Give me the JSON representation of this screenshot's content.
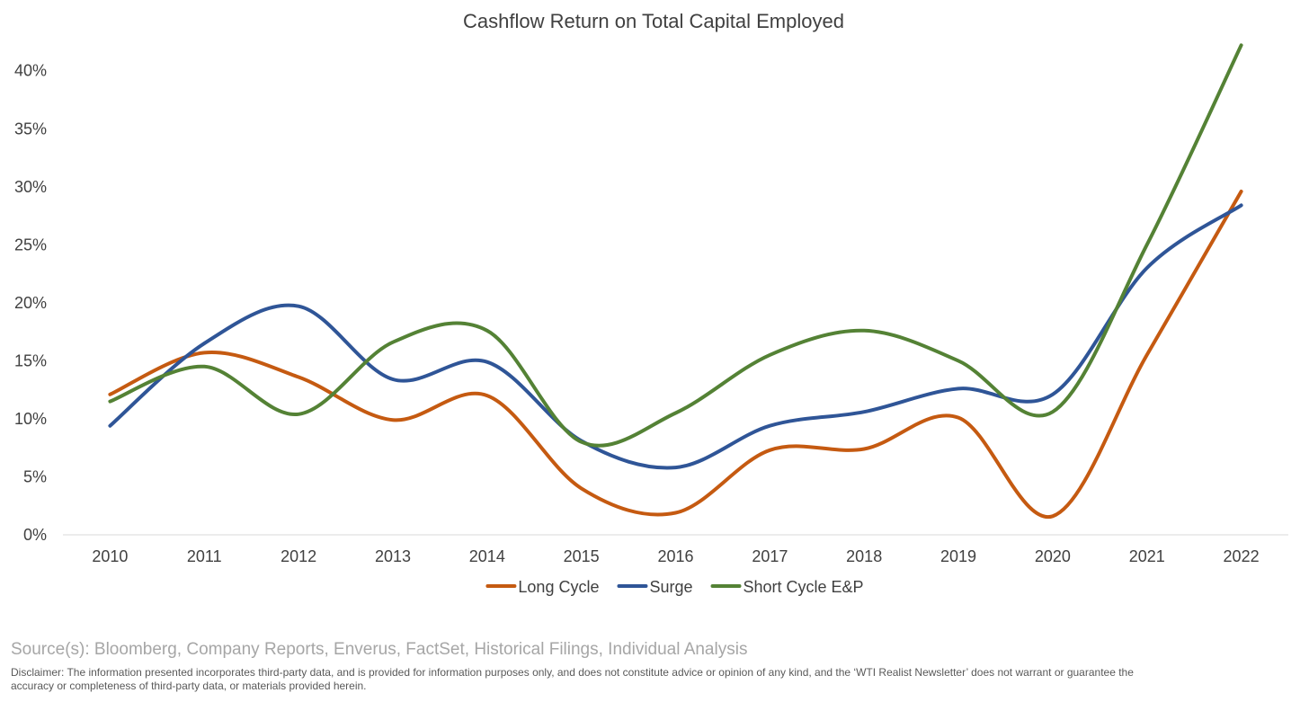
{
  "chart_data": {
    "type": "line",
    "title": "Cashflow Return on Total Capital Employed",
    "categories": [
      "2010",
      "2011",
      "2012",
      "2013",
      "2014",
      "2015",
      "2016",
      "2017",
      "2018",
      "2019",
      "2020",
      "2021",
      "2022"
    ],
    "series": [
      {
        "name": "Long Cycle",
        "color": "#c55a11",
        "values": [
          12.1,
          15.7,
          13.6,
          9.9,
          12.0,
          4.0,
          1.9,
          7.3,
          7.4,
          10.1,
          1.6,
          15.5,
          29.6
        ]
      },
      {
        "name": "Surge",
        "color": "#2f5597",
        "values": [
          9.4,
          16.5,
          19.7,
          13.4,
          14.9,
          8.1,
          5.8,
          9.4,
          10.6,
          12.6,
          12.1,
          23.0,
          28.4
        ]
      },
      {
        "name": "Short Cycle E&P",
        "color": "#548235",
        "values": [
          11.5,
          14.5,
          10.4,
          16.6,
          17.6,
          8.0,
          10.5,
          15.5,
          17.6,
          15.0,
          10.6,
          25.0,
          42.2
        ]
      }
    ],
    "y_ticks": [
      "0%",
      "5%",
      "10%",
      "15%",
      "20%",
      "25%",
      "30%",
      "35%",
      "40%"
    ],
    "ylim": [
      0,
      43
    ],
    "xlabel": "",
    "ylabel": "",
    "grid": false,
    "legend_position": "bottom-center"
  },
  "source_text": "Source(s): Bloomberg, Company Reports, Enverus, FactSet, Historical Filings, Individual Analysis",
  "disclaimer_text": "Disclaimer: The information presented incorporates third-party data, and is provided for information purposes only, and does not constitute advice or opinion of any kind, and the ‘WTI Realist Newsletter’ does not warrant or guarantee the accuracy or completeness of third-party data, or materials provided herein."
}
